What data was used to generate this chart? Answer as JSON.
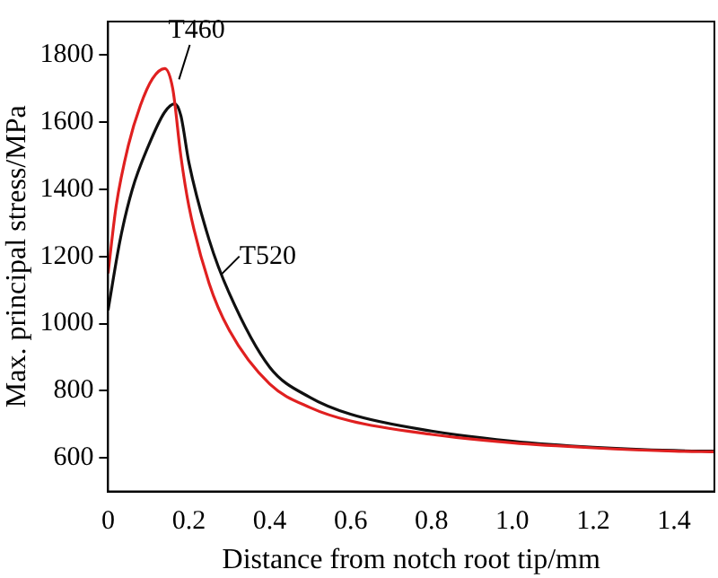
{
  "chart_data": {
    "type": "line",
    "xlabel": "Distance from notch root tip/mm",
    "ylabel": "Max. principal stress/MPa",
    "xlim": [
      0,
      1.5
    ],
    "xticks": [
      0,
      0.2,
      0.4,
      0.6,
      0.8,
      {
        "value": 1,
        "label": "1.0"
      },
      1.2,
      1.4
    ],
    "ylim": [
      500,
      1900
    ],
    "yticks": [
      600,
      800,
      1000,
      1200,
      1400,
      1600,
      1800
    ],
    "grid": false,
    "marker": "none",
    "line_style": "solid",
    "series": [
      {
        "name": "T460",
        "color": "#e02020",
        "x": [
          0,
          0.02,
          0.05,
          0.08,
          0.11,
          0.14,
          0.16,
          0.18,
          0.2,
          0.25,
          0.3,
          0.4,
          0.5,
          0.6,
          0.8,
          1.0,
          1.2,
          1.4,
          1.5
        ],
        "values": [
          1150,
          1350,
          1530,
          1650,
          1730,
          1760,
          1700,
          1500,
          1350,
          1120,
          980,
          820,
          750,
          710,
          670,
          645,
          630,
          620,
          618
        ]
      },
      {
        "name": "T520",
        "color": "#101010",
        "x": [
          0,
          0.03,
          0.06,
          0.1,
          0.14,
          0.165,
          0.18,
          0.2,
          0.25,
          0.3,
          0.4,
          0.5,
          0.6,
          0.8,
          1.0,
          1.2,
          1.4,
          1.5
        ],
        "values": [
          1040,
          1250,
          1400,
          1530,
          1630,
          1655,
          1620,
          1480,
          1250,
          1090,
          870,
          780,
          730,
          680,
          650,
          632,
          622,
          620
        ]
      }
    ]
  }
}
